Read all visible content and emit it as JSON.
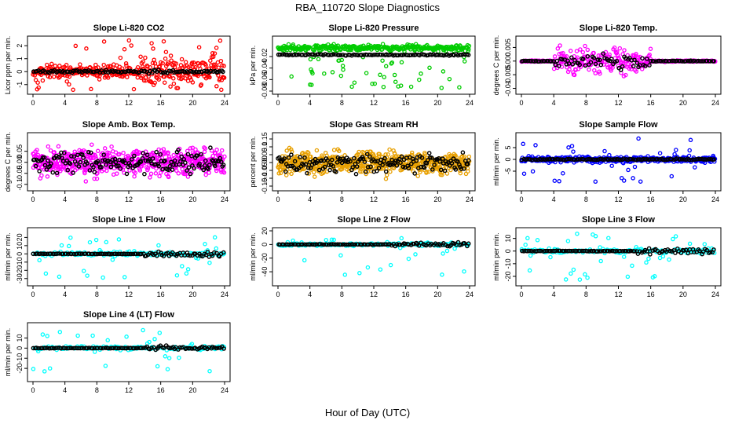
{
  "figure": {
    "title": "RBA_110720  Slope Diagnostics",
    "xlabel": "Hour of Day (UTC)"
  },
  "chart_data": [
    {
      "type": "scatter",
      "title": "Slope Li-820 CO2",
      "ylabel": "Licor ppm per min.",
      "xlim": [
        0,
        24
      ],
      "x_ticks": [
        0,
        4,
        8,
        12,
        16,
        20,
        24
      ],
      "ylim": [
        -1.5,
        2.5
      ],
      "y_ticks": [
        -1,
        0,
        1,
        2
      ],
      "seed": 11,
      "spread": 0.35,
      "outliers": 0.15,
      "spread_late": 0.9,
      "late_start": 13.5,
      "series": [
        {
          "color": "#ff0000",
          "values_summary": "raw slopes scattered around 0, mostly within ±1, wider spread (up to ±2.5) after 13 h"
        },
        {
          "color": "#000000",
          "values_summary": "filtered slopes near 0"
        }
      ]
    },
    {
      "type": "scatter",
      "title": "Slope Li-820 Pressure",
      "ylabel": "kPa per min.",
      "xlim": [
        0,
        24
      ],
      "x_ticks": [
        0,
        4,
        8,
        12,
        16,
        20,
        24
      ],
      "ylim": [
        -0.08,
        0.01
      ],
      "y_ticks": [
        -0.08,
        -0.06,
        -0.04,
        -0.02
      ],
      "seed": 23,
      "center": -0.005,
      "spread": 0.004,
      "outliers": 0.12,
      "outlier_range": [
        -0.075,
        -0.02
      ],
      "black_offset": -0.012,
      "series": [
        {
          "color": "#00cc00",
          "values_summary": "raw slopes cluster near -0.005, occasional dips to about -0.075"
        },
        {
          "color": "#000000",
          "values_summary": "filtered slopes near -0.015"
        }
      ]
    },
    {
      "type": "scatter",
      "title": "Slope Li-820 Temp.",
      "ylabel": "degrees C per min.",
      "xlim": [
        0,
        24
      ],
      "x_ticks": [
        0,
        4,
        8,
        12,
        16,
        20,
        24
      ],
      "ylim": [
        -0.011,
        0.008
      ],
      "y_ticks": [
        -0.01,
        -0.005,
        0.0,
        0.005
      ],
      "seed": 37,
      "spread": 0.0035,
      "active": [
        4,
        16
      ],
      "series": [
        {
          "color": "#ff00ff",
          "values_summary": "near 0 outside 4–16 h, spread ±0.01 between 4 and 16 h"
        },
        {
          "color": "#000000",
          "values_summary": "filtered slopes near 0"
        }
      ]
    },
    {
      "type": "scatter",
      "title": "Slope Amb. Box Temp.",
      "ylabel": "degrees C per min.",
      "xlim": [
        0,
        24
      ],
      "x_ticks": [
        0,
        4,
        8,
        12,
        16,
        20,
        24
      ],
      "ylim": [
        -0.115,
        0.12
      ],
      "y_ticks": [
        -0.1,
        -0.05,
        0.0,
        0.05
      ],
      "seed": 41,
      "spread": 0.045,
      "dense": true,
      "series": [
        {
          "color": "#ff00ff",
          "values_summary": "dense scatter within about ±0.1 over the whole day"
        },
        {
          "color": "#000000",
          "values_summary": "filtered slopes within about ±0.06"
        }
      ]
    },
    {
      "type": "scatter",
      "title": "Slope Gas Stream RH",
      "ylabel": "percent per min.",
      "xlim": [
        0,
        24
      ],
      "x_ticks": [
        0,
        4,
        8,
        12,
        16,
        20,
        24
      ],
      "ylim": [
        -0.16,
        0.17
      ],
      "y_ticks": [
        -0.15,
        -0.1,
        -0.05,
        0.0,
        0.05,
        0.1,
        0.15
      ],
      "seed": 53,
      "spread": 0.055,
      "dense": true,
      "series": [
        {
          "color": "#e8a000",
          "values_summary": "dense scatter within about ±0.15 over the whole day"
        },
        {
          "color": "#000000",
          "values_summary": "filtered slopes within about ±0.1"
        }
      ]
    },
    {
      "type": "scatter",
      "title": "Slope Sample Flow",
      "ylabel": "ml/min per min.",
      "xlim": [
        0,
        24
      ],
      "x_ticks": [
        0,
        4,
        8,
        12,
        16,
        20,
        24
      ],
      "ylim": [
        -12,
        10
      ],
      "y_ticks": [
        -5,
        0,
        5
      ],
      "seed": 67,
      "spread": 0.9,
      "outliers": 0.08,
      "outlier_range": [
        -11,
        9
      ],
      "series": [
        {
          "color": "#0000ff",
          "values_summary": "tight band near 0 with outliers between -11 and 9"
        },
        {
          "color": "#000000",
          "values_summary": "filtered slopes near 0"
        }
      ]
    },
    {
      "type": "scatter",
      "title": "Slope Line 1 Flow",
      "ylabel": "ml/min per min.",
      "xlim": [
        0,
        24
      ],
      "x_ticks": [
        0,
        4,
        8,
        12,
        16,
        20,
        24
      ],
      "ylim": [
        -35,
        28
      ],
      "y_ticks": [
        -30,
        -20,
        -10,
        0,
        10,
        20
      ],
      "seed": 71,
      "spread": 2,
      "outliers": 0.18,
      "outlier_range": [
        -32,
        25
      ],
      "sparse": true,
      "series": [
        {
          "color": "#00ffff",
          "values_summary": "mostly near 0 with outliers between -32 and 25"
        },
        {
          "color": "#000000",
          "values_summary": "filtered slopes at 0"
        }
      ]
    },
    {
      "type": "scatter",
      "title": "Slope Line 2 Flow",
      "ylabel": "ml/min per min.",
      "xlim": [
        0,
        24
      ],
      "x_ticks": [
        0,
        4,
        8,
        12,
        16,
        20,
        24
      ],
      "ylim": [
        -56,
        20
      ],
      "y_ticks": [
        -40,
        -20,
        0,
        20
      ],
      "seed": 79,
      "spread": 2,
      "outliers": 0.18,
      "outlier_range": [
        -52,
        15
      ],
      "sparse": true,
      "series": [
        {
          "color": "#00ffff",
          "values_summary": "mostly near 0 with outliers between -52 and 15"
        },
        {
          "color": "#000000",
          "values_summary": "filtered slopes at 0"
        }
      ]
    },
    {
      "type": "scatter",
      "title": "Slope Line 3 Flow",
      "ylabel": "ml/min per min.",
      "xlim": [
        0,
        24
      ],
      "x_ticks": [
        0,
        4,
        8,
        12,
        16,
        20,
        24
      ],
      "ylim": [
        -25,
        16
      ],
      "y_ticks": [
        -20,
        -10,
        0,
        10
      ],
      "seed": 83,
      "spread": 1.5,
      "outliers": 0.2,
      "outlier_range": [
        -23,
        14
      ],
      "sparse": true,
      "series": [
        {
          "color": "#00ffff",
          "values_summary": "mostly near 0 with outliers between -23 and 14"
        },
        {
          "color": "#000000",
          "values_summary": "filtered slopes near 0"
        }
      ]
    },
    {
      "type": "scatter",
      "title": "Slope Line 4 (LT) Flow",
      "ylabel": "ml/min per min.",
      "xlim": [
        0,
        24
      ],
      "x_ticks": [
        0,
        4,
        8,
        12,
        16,
        20,
        24
      ],
      "ylim": [
        -30,
        22
      ],
      "y_ticks": [
        -20,
        -10,
        0,
        10
      ],
      "seed": 97,
      "spread": 1.5,
      "outliers": 0.2,
      "outlier_range": [
        -28,
        20
      ],
      "sparse": true,
      "series": [
        {
          "color": "#00ffff",
          "values_summary": "mostly near 0 with outliers between -28 and 20"
        },
        {
          "color": "#000000",
          "values_summary": "filtered slopes near 0"
        }
      ]
    }
  ]
}
